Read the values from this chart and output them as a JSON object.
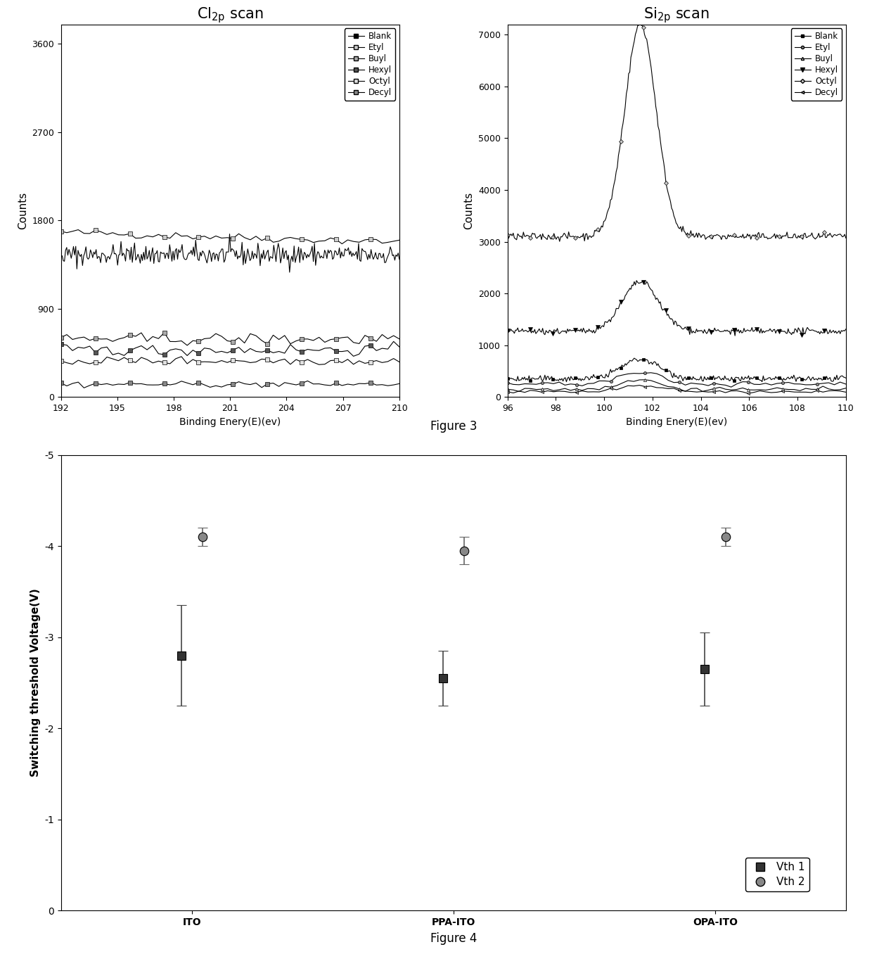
{
  "cl_xlabel": "Binding Enery(E)(ev)",
  "si_xlabel": "Binding Enery(E)(ev)",
  "ylabel": "Counts",
  "cl_xlim": [
    192,
    210
  ],
  "cl_ylim": [
    0,
    3800
  ],
  "cl_xticks": [
    192,
    195,
    198,
    201,
    204,
    207,
    210
  ],
  "cl_yticks": [
    0,
    900,
    1800,
    2700,
    3600
  ],
  "si_xlim": [
    96,
    110
  ],
  "si_ylim": [
    0,
    7200
  ],
  "si_xticks": [
    96,
    98,
    100,
    102,
    104,
    106,
    108,
    110
  ],
  "si_yticks": [
    0,
    1000,
    2000,
    3000,
    4000,
    5000,
    6000,
    7000
  ],
  "legend_labels_cl": [
    "Blank",
    "Etyl",
    "Buyl",
    "Hexyl",
    "Octyl",
    "Decyl"
  ],
  "legend_labels_si": [
    "Blank",
    "Etyl",
    "Buyl",
    "Hexyl",
    "Octyl",
    "Decyl"
  ],
  "fig3_caption": "Figure 3",
  "fig4_caption": "Figure 4",
  "fig4_ylabel": "Switching threshold Voltage(V)",
  "fig4_categories": [
    "ITO",
    "PPA-ITO",
    "OPA-ITO"
  ],
  "vth1_values": [
    -2.8,
    -2.55,
    -2.65
  ],
  "vth1_errors": [
    0.55,
    0.3,
    0.4
  ],
  "vth2_values": [
    -4.1,
    -3.95,
    -4.1
  ],
  "vth2_errors": [
    0.1,
    0.15,
    0.1
  ],
  "vth1_color": "#333333",
  "vth2_color": "#888888",
  "bg_color": "#ffffff"
}
